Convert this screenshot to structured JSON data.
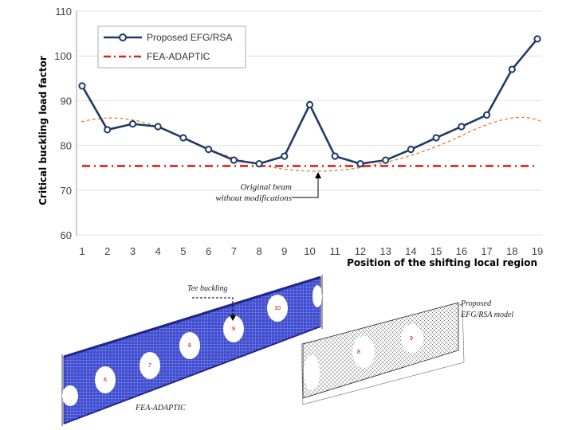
{
  "chart_data": {
    "type": "line",
    "title": "",
    "xlabel": "Position of the shifting local region",
    "ylabel": "Critical buckling load factor",
    "x": [
      1,
      2,
      3,
      4,
      5,
      6,
      7,
      8,
      9,
      10,
      11,
      12,
      13,
      14,
      15,
      16,
      17,
      18,
      19
    ],
    "ylim": [
      60,
      110
    ],
    "yticks": [
      60,
      70,
      80,
      90,
      100,
      110
    ],
    "grid": true,
    "legend_position": "top-left",
    "series": [
      {
        "name": "Proposed EFG/RSA",
        "color": "#1f3a68",
        "values": [
          93.3,
          83.5,
          84.8,
          84.2,
          81.7,
          79.1,
          76.7,
          75.9,
          77.6,
          89.1,
          77.6,
          75.9,
          76.7,
          79.1,
          81.7,
          84.2,
          86.8,
          97.0,
          103.8
        ]
      },
      {
        "name": "FEA-ADAPTIC",
        "color": "#e0211c",
        "values": [
          75.4,
          75.4,
          75.4,
          75.4,
          75.4,
          75.4,
          75.4,
          75.4,
          75.4,
          75.4,
          75.4,
          75.4,
          75.4,
          75.4,
          75.4,
          75.4,
          75.4,
          75.4,
          75.4
        ]
      }
    ],
    "annotations": {
      "original_beam_line1": "Original beam",
      "original_beam_line2": "without modifications"
    }
  },
  "figure": {
    "tee_buckling": "Tee buckling",
    "fea_label": "FEA-ADAPTIC",
    "efg_label_line1": "Proposed",
    "efg_label_line2": "EFG/RSA model",
    "left_hole_numbers": [
      "6",
      "7",
      "8",
      "9",
      "10"
    ],
    "right_hole_numbers": [
      "8",
      "9"
    ]
  }
}
